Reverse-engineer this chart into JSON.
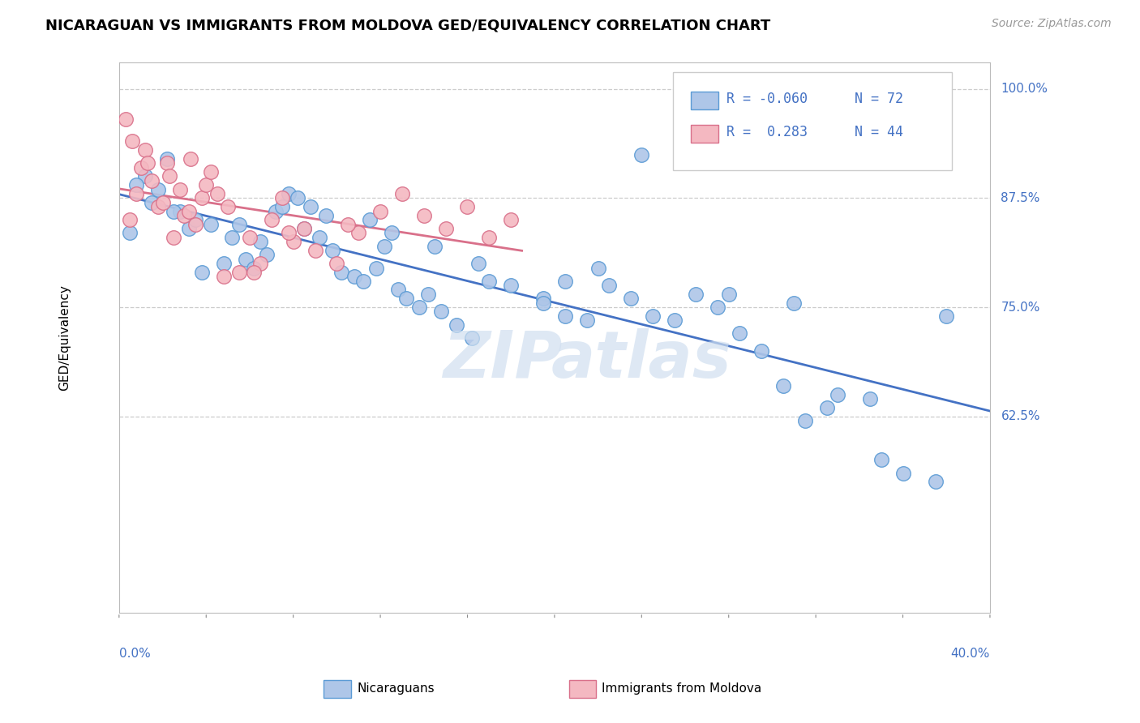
{
  "title": "NICARAGUAN VS IMMIGRANTS FROM MOLDOVA GED/EQUIVALENCY CORRELATION CHART",
  "source": "Source: ZipAtlas.com",
  "blue_R": "-0.060",
  "blue_N": "72",
  "pink_R": "0.283",
  "pink_N": "44",
  "blue_color": "#aec6e8",
  "blue_edge": "#5b9bd5",
  "pink_color": "#f4b8c1",
  "pink_edge": "#d9708a",
  "blue_line_color": "#4472c4",
  "pink_line_color": "#d9708a",
  "legend_color": "#4472c4",
  "blue_scatter_x": [
    0.5,
    1.2,
    1.8,
    2.2,
    2.8,
    3.2,
    3.8,
    4.2,
    4.8,
    5.2,
    5.8,
    6.2,
    6.8,
    7.2,
    7.8,
    8.2,
    8.8,
    9.2,
    9.8,
    10.2,
    10.8,
    11.2,
    11.8,
    12.2,
    12.8,
    13.2,
    13.8,
    14.2,
    14.8,
    15.5,
    16.2,
    17.0,
    18.0,
    19.5,
    20.5,
    21.5,
    22.5,
    23.5,
    24.5,
    25.5,
    26.5,
    27.5,
    28.5,
    29.5,
    30.5,
    31.0,
    31.5,
    32.5,
    33.0,
    34.5,
    16.5,
    12.5,
    9.5,
    7.5,
    5.5,
    3.5,
    2.5,
    1.5,
    0.8,
    22.0,
    24.0,
    28.0,
    19.5,
    35.0,
    36.0,
    37.5,
    38.0,
    20.5,
    14.5,
    11.5,
    8.5,
    6.5
  ],
  "blue_scatter_y": [
    83.5,
    90.0,
    88.5,
    92.0,
    86.0,
    84.0,
    79.0,
    84.5,
    80.0,
    83.0,
    80.5,
    79.5,
    81.0,
    86.0,
    88.0,
    87.5,
    86.5,
    83.0,
    81.5,
    79.0,
    78.5,
    78.0,
    79.5,
    82.0,
    77.0,
    76.0,
    75.0,
    76.5,
    74.5,
    73.0,
    71.5,
    78.0,
    77.5,
    76.0,
    74.0,
    73.5,
    77.5,
    76.0,
    74.0,
    73.5,
    76.5,
    75.0,
    72.0,
    70.0,
    66.0,
    75.5,
    62.0,
    63.5,
    65.0,
    64.5,
    80.0,
    83.5,
    85.5,
    86.5,
    84.5,
    85.0,
    86.0,
    87.0,
    89.0,
    79.5,
    92.5,
    76.5,
    75.5,
    57.5,
    56.0,
    55.0,
    74.0,
    78.0,
    82.0,
    85.0,
    84.0,
    82.5
  ],
  "pink_scatter_x": [
    0.3,
    0.5,
    0.8,
    1.0,
    1.2,
    1.5,
    1.8,
    2.0,
    2.2,
    2.5,
    2.8,
    3.0,
    3.2,
    3.5,
    3.8,
    4.0,
    4.2,
    4.5,
    5.0,
    5.5,
    6.0,
    6.5,
    7.0,
    8.0,
    9.0,
    10.0,
    11.0,
    12.0,
    13.0,
    14.0,
    15.0,
    16.0,
    17.0,
    18.0,
    7.5,
    8.5,
    3.3,
    2.3,
    1.3,
    0.6,
    4.8,
    6.2,
    7.8,
    10.5
  ],
  "pink_scatter_y": [
    96.5,
    85.0,
    88.0,
    91.0,
    93.0,
    89.5,
    86.5,
    87.0,
    91.5,
    83.0,
    88.5,
    85.5,
    86.0,
    84.5,
    87.5,
    89.0,
    90.5,
    88.0,
    86.5,
    79.0,
    83.0,
    80.0,
    85.0,
    82.5,
    81.5,
    80.0,
    83.5,
    86.0,
    88.0,
    85.5,
    84.0,
    86.5,
    83.0,
    85.0,
    87.5,
    84.0,
    92.0,
    90.0,
    91.5,
    94.0,
    78.5,
    79.0,
    83.5,
    84.5
  ],
  "xmin": 0.0,
  "xmax": 40.0,
  "ymin": 40.0,
  "ymax": 103.0,
  "ytick_vals": [
    62.5,
    75.0,
    87.5,
    100.0
  ],
  "ytick_labels": [
    "62.5%",
    "75.0%",
    "87.5%",
    "100.0%"
  ],
  "grid_color": "#cccccc",
  "background_color": "#ffffff",
  "watermark_color": "#d0dff0"
}
